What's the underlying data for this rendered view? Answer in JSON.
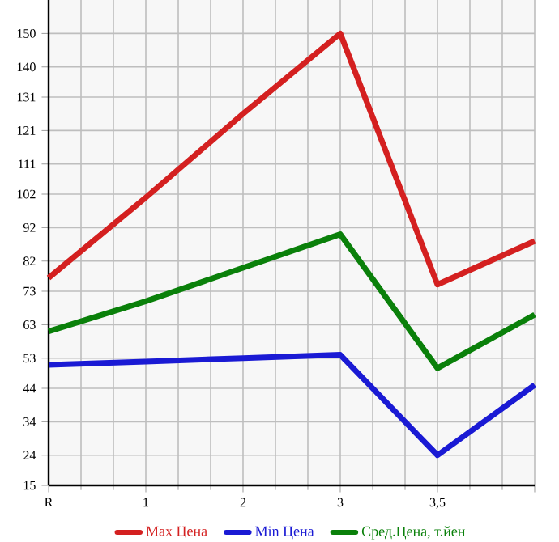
{
  "chart_data": {
    "type": "line",
    "categories": [
      "R",
      "1",
      "2",
      "3",
      "3,5",
      null
    ],
    "series": [
      {
        "name": "Max Цена",
        "color": "#d42020",
        "values": [
          77,
          101,
          126,
          150,
          75,
          88
        ]
      },
      {
        "name": "Min Цена",
        "color": "#1a1ad4",
        "values": [
          51,
          52,
          53,
          54,
          24,
          45
        ]
      },
      {
        "name": "Сред.Цена, т.йен",
        "color": "#0a800a",
        "values": [
          61,
          70,
          80,
          90,
          50,
          66
        ]
      }
    ],
    "ylim": [
      15,
      160
    ],
    "yticks": [
      15,
      24,
      34,
      44,
      53,
      63,
      73,
      82,
      92,
      102,
      111,
      121,
      131,
      140,
      150
    ],
    "grid": true,
    "legend": "bottom",
    "marker": "none",
    "line_style": "solid"
  }
}
